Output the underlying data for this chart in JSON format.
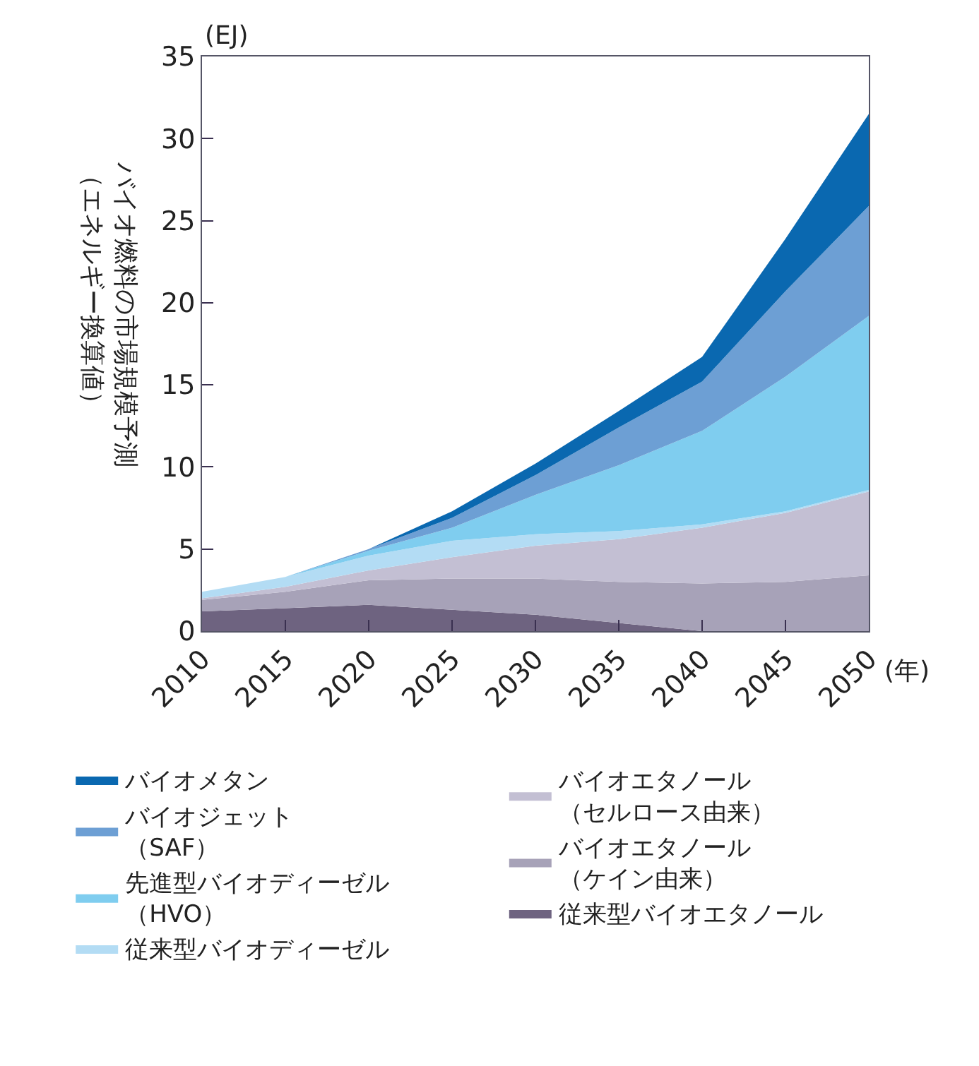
{
  "chart_data": {
    "type": "area",
    "stacked": true,
    "ylabel": "バイオ燃料の市場規模予測（エネルギー換算値）",
    "annotations": [
      "(EJ)",
      "(年)"
    ],
    "x": [
      2010,
      2015,
      2020,
      2025,
      2030,
      2035,
      2040,
      2045,
      2050
    ],
    "series": [
      {
        "name": "従来型バイオエタノール",
        "color": "#6e6380",
        "values": [
          1.2,
          1.4,
          1.6,
          1.3,
          1.0,
          0.5,
          0,
          0,
          0
        ]
      },
      {
        "name": "バイオエタノール（ケイン由来）",
        "color": "#a7a2b8",
        "values": [
          0.7,
          1.0,
          1.5,
          1.9,
          2.2,
          2.5,
          2.9,
          3.0,
          3.4
        ]
      },
      {
        "name": "バイオエタノール（セルロース由来）",
        "color": "#c3bfd3",
        "values": [
          0.1,
          0.3,
          0.6,
          1.3,
          2.0,
          2.6,
          3.4,
          4.2,
          5.1
        ]
      },
      {
        "name": "従来型バイオディーゼル",
        "color": "#b3dcf4",
        "values": [
          0.4,
          0.6,
          0.9,
          1.0,
          0.7,
          0.5,
          0.2,
          0.1,
          0.1
        ]
      },
      {
        "name": "先進型バイオディーゼル（HVO）",
        "color": "#7fcdef",
        "values": [
          0,
          0,
          0.3,
          0.8,
          2.4,
          4.0,
          5.7,
          8.2,
          10.6
        ]
      },
      {
        "name": "バイオジェット（SAF）",
        "color": "#6d9fd4",
        "values": [
          0,
          0,
          0.1,
          0.6,
          1.2,
          2.3,
          3.0,
          5.2,
          6.7
        ]
      },
      {
        "name": "バイオメタン",
        "color": "#0a68b0",
        "values": [
          0,
          0,
          0,
          0.4,
          0.7,
          1.0,
          1.5,
          3.2,
          5.6
        ]
      }
    ],
    "xlim": [
      2010,
      2050
    ],
    "xticks": [
      2010,
      2015,
      2020,
      2025,
      2030,
      2035,
      2040,
      2045,
      2050
    ],
    "ylim": [
      0,
      35
    ],
    "yticks": [
      0,
      5,
      10,
      15,
      20,
      25,
      30,
      35
    ],
    "legend": "bottom"
  }
}
